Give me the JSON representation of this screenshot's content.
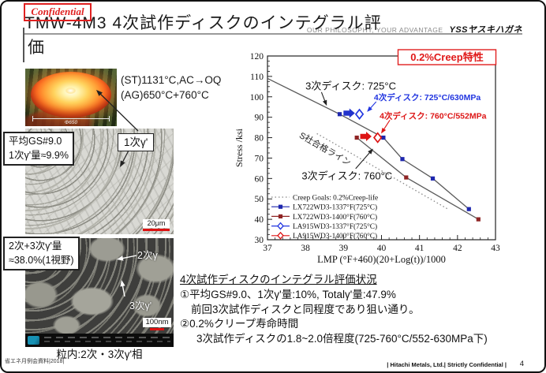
{
  "page": {
    "stamp": "Confidential",
    "title_line1": "TMW-4M3 4次試作ディスクのインテグラル評",
    "title_line2": "価",
    "tagline": "OUR PHILOSOPHY, YOUR ADVANTAGE",
    "brand": "YSSヤスキハガネ",
    "footer_left": "省エネ月例会資料|2018|",
    "footer_right": "| Hitachi Metals, Ltd.| Strictly Confidential |",
    "page_number": "4"
  },
  "left_panel": {
    "heat_treatment_line1": "(ST)1131°C,AC→OQ",
    "heat_treatment_line2": "(AG)650°C+760°C",
    "disk_diameter": "Φ650",
    "optical_info_line1": "平均GS#9.0",
    "optical_info_line2": "1次γ'量≈9.9%",
    "gamma_primary_label": "1次γ'",
    "optical_scale": "20μm",
    "sem_info_line1": "2次+3次γ'量",
    "sem_info_line2": "≈38.0%(1視野)",
    "gamma_secondary_label": "2次γ",
    "gamma_tertiary_label": "3次γ'",
    "sem_scale": "100nm",
    "sem_caption": "粒内:2次・3次γ'相"
  },
  "summary": {
    "heading": "4次試作ディスクのインテグラル評価状況",
    "lines": [
      "①平均GS#9.0、1次γ'量:10%, Totalγ'量:47.9%",
      "前回3次試作ディスクと同程度であり狙い通り。",
      "②0.2%クリープ寿命時間",
      "3次試作ディスクの1.8~2.0倍程度(725-760°C/552-630MPa下)"
    ]
  },
  "chart_data": {
    "type": "line",
    "title": "0.2%Creep特性",
    "title_color": "#e01818",
    "xlabel": "LMP (°F+460)(20+Log(t))/1000",
    "ylabel": "Stress /ksi",
    "xlim": [
      37,
      43
    ],
    "ylim": [
      30,
      120
    ],
    "x_ticks": [
      37,
      38,
      39,
      40,
      41,
      42,
      43
    ],
    "y_ticks": [
      30,
      40,
      50,
      60,
      70,
      80,
      90,
      100,
      110,
      120
    ],
    "x_minor_step": 0.2,
    "y_minor_step": 2.5,
    "grid": false,
    "legend_position": "bottom-left",
    "series": [
      {
        "name": "Creep Goals: 0.2%Creep-life",
        "line": "dotted",
        "line_color": "#888888",
        "marker": "none",
        "points": [
          [
            38.3,
            82
          ],
          [
            41.75,
            45
          ]
        ]
      },
      {
        "name": "LX722WD3-1337°F(725°C)",
        "line": "solid",
        "line_color": "#5a5a5a",
        "marker": "square",
        "marker_color": "#1e27ae",
        "marker_skip_first": true,
        "points": [
          [
            37.0,
            109
          ],
          [
            38.9,
            91.5
          ],
          [
            40.05,
            80
          ],
          [
            40.55,
            69.5
          ],
          [
            41.35,
            60
          ],
          [
            42.3,
            45
          ]
        ]
      },
      {
        "name": "LX722WD3-1400°F(760°C)",
        "line": "solid",
        "line_color": "#5a5a5a",
        "marker": "square",
        "marker_color": "#8f2424",
        "points": [
          [
            39.35,
            80
          ],
          [
            40.65,
            60.5
          ],
          [
            42.55,
            40
          ]
        ]
      },
      {
        "name": "LA915WD3-1337°F(725°C)",
        "line": "none",
        "line_color": "#2236e0",
        "marker": "diamond-open",
        "marker_color": "#2236e0",
        "points": [
          [
            39.42,
            91.5
          ]
        ]
      },
      {
        "name": "LA915WD3-1400°F(760°C)",
        "line": "none",
        "line_color": "#dd1515",
        "marker": "diamond-open",
        "marker_color": "#dd1515",
        "points": [
          [
            39.9,
            80
          ]
        ]
      }
    ],
    "annotations": [
      {
        "text": "3次ディスク: 725°C",
        "x": 38.0,
        "y": 103.5,
        "color": "#111111",
        "size": 13,
        "weight": "normal"
      },
      {
        "text": "4次ディスク: 725°C/630MPa",
        "x": 39.8,
        "y": 98.3,
        "color": "#2236e0",
        "size": 10.5,
        "weight": "bold"
      },
      {
        "text": "4次ディスク: 760°C/552MPa",
        "x": 39.95,
        "y": 89.3,
        "color": "#dd1515",
        "size": 10.5,
        "weight": "bold"
      },
      {
        "text": "S社合格ライン",
        "x": 37.82,
        "y": 80.3,
        "color": "#222222",
        "size": 11,
        "rotate": 30
      },
      {
        "text": "3次ディスク: 760°C",
        "x": 37.9,
        "y": 59.5,
        "color": "#111111",
        "size": 13,
        "weight": "normal"
      }
    ],
    "pointer_arrows": [
      {
        "x1": 38.42,
        "y1": 102.3,
        "x2": 38.56,
        "y2": 95.6,
        "color": "#222222"
      },
      {
        "x1": 39.86,
        "y1": 97.6,
        "x2": 39.62,
        "y2": 92.6,
        "color": "#2236e0"
      },
      {
        "x1": 40.22,
        "y1": 88.6,
        "x2": 39.99,
        "y2": 82.0,
        "color": "#dd1515"
      },
      {
        "x1": 39.32,
        "y1": 64.8,
        "x2": 39.78,
        "y2": 74.6,
        "color": "#222222"
      }
    ],
    "block_arrows": [
      {
        "x1": 39.0,
        "x2": 39.3,
        "y": 92.0,
        "color": "#2233cc"
      },
      {
        "x1": 39.44,
        "x2": 39.74,
        "y": 80.6,
        "color": "#dd1515"
      }
    ]
  }
}
